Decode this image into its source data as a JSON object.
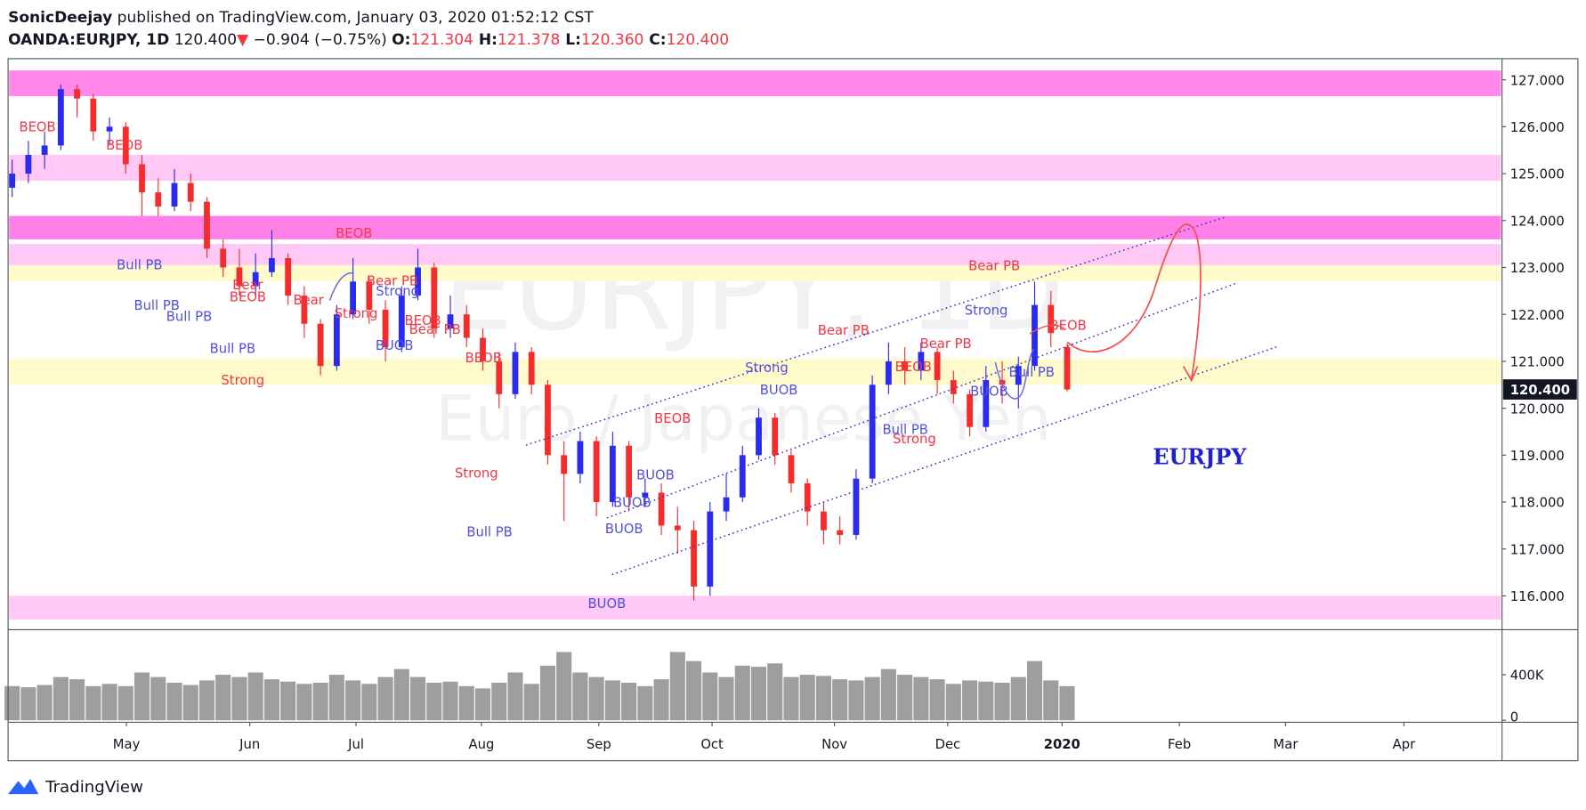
{
  "header": {
    "author": "SonicDeejay",
    "published": " published on TradingView.com, January 03, 2020 01:52:12 CST",
    "symbol": "OANDA:EURJPY, 1D",
    "last": " 120.400",
    "arrow": "▼",
    "change": " −0.904 (−0.75%) ",
    "ohlc": [
      {
        "key": "O:",
        "value": "121.304"
      },
      {
        "key": " H:",
        "value": "121.378"
      },
      {
        "key": " L:",
        "value": "120.360"
      },
      {
        "key": " C:",
        "value": "120.400"
      }
    ]
  },
  "chart_data": {
    "type": "candlestick",
    "watermark": "EURJPY, 1D",
    "watermark_sub": "Euro / Japanese Yen",
    "label": "EURJPY",
    "price_label": "120.400",
    "up_color": "#2b2bf0",
    "down_color": "#f52c2c",
    "open": [
      124.7,
      125.0,
      125.4,
      125.6,
      126.8,
      126.6,
      125.9,
      126.0,
      125.2,
      124.6,
      124.3,
      124.8,
      124.4,
      123.4,
      123.0,
      122.6,
      122.9,
      123.2,
      122.4,
      121.8,
      120.9,
      122.0,
      122.7,
      122.1,
      121.3,
      122.4,
      123.0,
      121.7,
      122.0,
      121.5,
      121.0,
      120.3,
      121.2,
      120.5,
      119.0,
      118.6,
      119.3,
      118.0,
      119.2,
      118.1,
      118.2,
      117.5,
      117.4,
      116.2,
      117.8,
      118.1,
      119.0,
      119.8,
      119.0,
      118.4,
      117.8,
      117.4,
      117.3,
      118.5,
      120.5,
      121.0,
      120.8,
      121.2,
      120.6,
      120.3,
      119.6,
      120.6,
      120.5,
      120.9,
      122.2,
      121.304
    ],
    "high": [
      125.3,
      125.7,
      125.9,
      126.9,
      126.9,
      126.7,
      126.2,
      126.1,
      125.4,
      124.9,
      125.1,
      125.0,
      124.5,
      123.6,
      123.4,
      123.3,
      123.8,
      123.3,
      122.6,
      121.9,
      122.2,
      123.2,
      122.8,
      122.3,
      122.6,
      123.4,
      123.1,
      122.4,
      122.2,
      121.7,
      121.2,
      121.4,
      121.3,
      120.6,
      119.3,
      119.5,
      119.4,
      119.5,
      119.3,
      118.5,
      118.4,
      117.9,
      117.6,
      118.0,
      118.6,
      119.2,
      120.0,
      119.9,
      119.1,
      118.5,
      118.0,
      117.7,
      118.7,
      120.7,
      121.4,
      121.3,
      121.4,
      121.3,
      120.8,
      120.4,
      120.9,
      121.0,
      121.1,
      122.7,
      122.5,
      121.378
    ],
    "low": [
      124.5,
      124.8,
      125.1,
      125.5,
      126.2,
      125.7,
      125.6,
      125.0,
      124.1,
      124.1,
      124.2,
      124.2,
      123.2,
      122.8,
      122.4,
      122.4,
      122.8,
      122.2,
      121.5,
      120.7,
      120.8,
      121.9,
      121.8,
      121.0,
      121.2,
      122.3,
      121.5,
      121.5,
      121.3,
      120.8,
      120.0,
      120.2,
      120.3,
      118.8,
      117.6,
      118.4,
      117.7,
      117.9,
      117.8,
      117.9,
      117.3,
      116.9,
      115.9,
      116.0,
      117.6,
      118.0,
      118.9,
      118.8,
      118.2,
      117.5,
      117.1,
      117.1,
      117.2,
      118.4,
      120.3,
      120.5,
      120.6,
      120.3,
      120.1,
      119.4,
      119.5,
      120.1,
      120.0,
      120.8,
      121.3,
      120.36
    ],
    "close": [
      125.0,
      125.4,
      125.6,
      126.8,
      126.6,
      125.9,
      126.0,
      125.2,
      124.6,
      124.3,
      124.8,
      124.4,
      123.4,
      123.0,
      122.6,
      122.9,
      123.2,
      122.4,
      121.8,
      120.9,
      122.0,
      122.7,
      122.1,
      121.3,
      122.4,
      123.0,
      121.7,
      122.0,
      121.5,
      121.0,
      120.3,
      121.2,
      120.5,
      119.0,
      118.6,
      119.3,
      118.0,
      119.2,
      118.1,
      118.2,
      117.5,
      117.4,
      116.2,
      117.8,
      118.1,
      119.0,
      119.8,
      119.0,
      118.4,
      117.8,
      117.4,
      117.3,
      118.5,
      120.5,
      121.0,
      120.8,
      121.2,
      120.6,
      120.3,
      119.6,
      120.6,
      120.5,
      120.9,
      122.2,
      121.6,
      120.4
    ],
    "ylim": [
      115.29,
      127.45
    ],
    "yticks": [
      {
        "value": 116,
        "label": "116.000"
      },
      {
        "value": 117,
        "label": "117.000"
      },
      {
        "value": 118,
        "label": "118.000"
      },
      {
        "value": 119,
        "label": "119.000"
      },
      {
        "value": 120,
        "label": "120.000"
      },
      {
        "value": 121,
        "label": "121.000"
      },
      {
        "value": 122,
        "label": "122.000"
      },
      {
        "value": 123,
        "label": "123.000"
      },
      {
        "value": 124,
        "label": "124.000"
      },
      {
        "value": 125,
        "label": "125.000"
      },
      {
        "value": 126,
        "label": "126.000"
      },
      {
        "value": 127,
        "label": "127.000"
      }
    ],
    "volume": {
      "color": "#9e9e9e",
      "ylim": [
        -17778,
        791111
      ],
      "yticks": [
        0,
        {
          "value": 400000,
          "label": "400K"
        }
      ],
      "values": [
        300000,
        290000,
        310000,
        380000,
        360000,
        300000,
        320000,
        300000,
        420000,
        380000,
        330000,
        310000,
        350000,
        400000,
        380000,
        420000,
        360000,
        340000,
        320000,
        330000,
        400000,
        350000,
        320000,
        380000,
        450000,
        380000,
        330000,
        340000,
        300000,
        280000,
        330000,
        420000,
        320000,
        480000,
        600000,
        420000,
        380000,
        350000,
        330000,
        300000,
        360000,
        600000,
        520000,
        420000,
        380000,
        480000,
        470000,
        500000,
        380000,
        400000,
        390000,
        360000,
        350000,
        380000,
        450000,
        400000,
        380000,
        360000,
        320000,
        350000,
        340000,
        330000,
        380000,
        520000,
        350000,
        300000
      ]
    },
    "xlabels": [
      "May",
      "Jun",
      "Jul",
      "Aug",
      "Sep",
      "Oct",
      "Nov",
      "Dec",
      "2020",
      "Feb",
      "Mar",
      "Apr"
    ],
    "zones": [
      {
        "from": 126.65,
        "to": 127.2,
        "color": "#ff88ea"
      },
      {
        "from": 124.85,
        "to": 125.4,
        "color": "#ffc8f5"
      },
      {
        "from": 123.6,
        "to": 124.1,
        "color": "#ff80e6"
      },
      {
        "from": 123.05,
        "to": 123.5,
        "color": "#ffc8f5"
      },
      {
        "from": 122.7,
        "to": 123.05,
        "color": "#fffacc"
      },
      {
        "from": 120.5,
        "to": 121.05,
        "color": "#fffacc"
      },
      {
        "from": 115.5,
        "to": 116.0,
        "color": "#ffc8f5"
      }
    ],
    "annotations": [
      {
        "text": "BEOB",
        "color": "#f23645"
      },
      {
        "text": "BEOB",
        "color": "#f23645"
      },
      {
        "text": "BEOB",
        "color": "#f23645"
      },
      {
        "text": "Bull PB",
        "color": "#5050e0"
      },
      {
        "text": "Bull PB",
        "color": "#5050e0"
      },
      {
        "text": "Bull PB",
        "color": "#5050e0"
      },
      {
        "text": "Bear",
        "color": "#f23645"
      },
      {
        "text": "BEOB",
        "color": "#f23645"
      },
      {
        "text": "Bull PB",
        "color": "#5050e0"
      },
      {
        "text": "Strong",
        "color": "#f23645"
      },
      {
        "text": "Bear",
        "color": "#f23645"
      },
      {
        "text": "Bear PB",
        "color": "#f23645"
      },
      {
        "text": "Strong",
        "color": "#5050e0"
      },
      {
        "text": "Strong",
        "color": "#f23645"
      },
      {
        "text": "BUOB",
        "color": "#5050e0"
      },
      {
        "text": "BEOB",
        "color": "#f23645"
      },
      {
        "text": "Bear PB",
        "color": "#f23645"
      },
      {
        "text": "BEOB",
        "color": "#f23645"
      },
      {
        "text": "Strong",
        "color": "#f23645"
      },
      {
        "text": "Bull PB",
        "color": "#5050e0"
      },
      {
        "text": "BEOB",
        "color": "#f23645"
      },
      {
        "text": "BUOB",
        "color": "#5050e0"
      },
      {
        "text": "BUOB",
        "color": "#5050e0"
      },
      {
        "text": "BUOB",
        "color": "#5050e0"
      },
      {
        "text": "BUOB",
        "color": "#5050e0"
      },
      {
        "text": "Strong",
        "color": "#5050e0"
      },
      {
        "text": "BUOB",
        "color": "#5050e0"
      },
      {
        "text": "Bear PB",
        "color": "#f23645"
      },
      {
        "text": "BEOB",
        "color": "#f23645"
      },
      {
        "text": "Bear PB",
        "color": "#f23645"
      },
      {
        "text": "Bull PB",
        "color": "#5050e0"
      },
      {
        "text": "Strong",
        "color": "#f23645"
      },
      {
        "text": "BUOB",
        "color": "#5050e0"
      },
      {
        "text": "Bear PB",
        "color": "#f23645"
      },
      {
        "text": "Strong",
        "color": "#5050e0"
      },
      {
        "text": "Bull PB",
        "color": "#5050e0"
      },
      {
        "text": "BEOB",
        "color": "#f23645"
      }
    ]
  },
  "footer": {
    "brand": "TradingView"
  }
}
